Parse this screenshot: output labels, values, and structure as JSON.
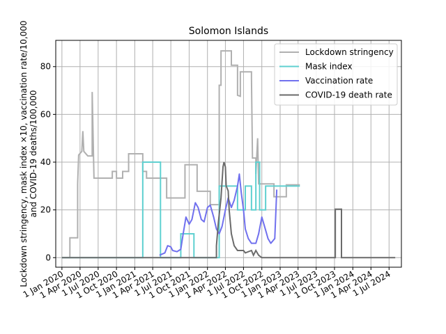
{
  "chart_data": {
    "type": "line",
    "title": "Solomon Islands",
    "xlabel": "",
    "ylabel_lines": [
      "Lockdown stringency, mask index ×10, vaccination rate/10,000",
      "and COVID-19 deaths/100,000"
    ],
    "xlim": [
      "2019-12-01",
      "2024-09-01"
    ],
    "ylim": [
      -4,
      91
    ],
    "x_ticks": [
      "2020-01-01",
      "2020-04-01",
      "2020-07-01",
      "2020-10-01",
      "2021-01-01",
      "2021-04-01",
      "2021-07-01",
      "2021-10-01",
      "2022-01-01",
      "2022-04-01",
      "2022-07-01",
      "2022-10-01",
      "2023-01-01",
      "2023-04-01",
      "2023-07-01",
      "2023-10-01",
      "2024-01-01",
      "2024-04-01",
      "2024-07-01"
    ],
    "x_tick_labels": [
      "1 Jan 2020",
      "1 Apr 2020",
      "1 Jul 2020",
      "1 Oct 2020",
      "1 Jan 2021",
      "1 Apr 2021",
      "1 Jul 2021",
      "1 Oct 2021",
      "1 Jan 2022",
      "1 Apr 2022",
      "1 Jul 2022",
      "1 Oct 2022",
      "1 Jan 2023",
      "1 Apr 2023",
      "1 Jul 2023",
      "1 Oct 2023",
      "1 Jan 2024",
      "1 Apr 2024",
      "1 Jul 2024"
    ],
    "y_ticks": [
      0,
      20,
      40,
      60,
      80
    ],
    "y_tick_labels": [
      "0",
      "20",
      "40",
      "60",
      "80"
    ],
    "grid": true,
    "legend_position": "top-right",
    "series": [
      {
        "name": "Lockdown stringency",
        "color": "#b0b0b0",
        "step": true,
        "points": [
          [
            "2020-01-01",
            0
          ],
          [
            "2020-02-10",
            0
          ],
          [
            "2020-02-10",
            8.3
          ],
          [
            "2020-03-20",
            8.3
          ],
          [
            "2020-03-20",
            31
          ],
          [
            "2020-03-25",
            43
          ],
          [
            "2020-04-10",
            44.5
          ],
          [
            "2020-04-15",
            53
          ],
          [
            "2020-04-20",
            44.5
          ],
          [
            "2020-05-10",
            42.6
          ],
          [
            "2020-06-01",
            42.6
          ],
          [
            "2020-06-01",
            69.4
          ],
          [
            "2020-06-10",
            33.3
          ],
          [
            "2020-09-10",
            33.3
          ],
          [
            "2020-09-10",
            36.1
          ],
          [
            "2020-10-01",
            36.1
          ],
          [
            "2020-10-01",
            33.3
          ],
          [
            "2020-11-01",
            33.3
          ],
          [
            "2020-11-01",
            36.1
          ],
          [
            "2020-12-01",
            36.1
          ],
          [
            "2020-12-01",
            43.5
          ],
          [
            "2021-02-10",
            43.5
          ],
          [
            "2021-02-10",
            36.1
          ],
          [
            "2021-03-01",
            36.1
          ],
          [
            "2021-03-01",
            33.3
          ],
          [
            "2021-06-10",
            33.3
          ],
          [
            "2021-06-10",
            25
          ],
          [
            "2021-09-10",
            25
          ],
          [
            "2021-09-10",
            38.9
          ],
          [
            "2021-11-10",
            38.9
          ],
          [
            "2021-11-10",
            27.8
          ],
          [
            "2022-01-15",
            27.8
          ],
          [
            "2022-01-15",
            22.2
          ],
          [
            "2022-03-01",
            22.2
          ],
          [
            "2022-03-01",
            72.2
          ],
          [
            "2022-03-10",
            72.2
          ],
          [
            "2022-03-10",
            86.6
          ],
          [
            "2022-05-01",
            86.6
          ],
          [
            "2022-05-01",
            80.6
          ],
          [
            "2022-06-01",
            80.6
          ],
          [
            "2022-06-01",
            68
          ],
          [
            "2022-06-15",
            67.6
          ],
          [
            "2022-06-15",
            77.8
          ],
          [
            "2022-08-10",
            77.8
          ],
          [
            "2022-08-10",
            75
          ],
          [
            "2022-08-15",
            41.7
          ],
          [
            "2022-09-01",
            41.7
          ],
          [
            "2022-09-01",
            35
          ],
          [
            "2022-09-10",
            50
          ],
          [
            "2022-09-15",
            30.9
          ],
          [
            "2022-12-01",
            30.9
          ],
          [
            "2022-12-01",
            25.5
          ],
          [
            "2023-02-01",
            25.5
          ],
          [
            "2023-02-01",
            30.5
          ],
          [
            "2023-04-10",
            30.5
          ]
        ]
      },
      {
        "name": "Mask index",
        "color": "#5fd0d0",
        "step": true,
        "points": [
          [
            "2020-01-01",
            0
          ],
          [
            "2021-02-10",
            0
          ],
          [
            "2021-02-10",
            40
          ],
          [
            "2021-05-10",
            40
          ],
          [
            "2021-05-10",
            0
          ],
          [
            "2021-08-20",
            0
          ],
          [
            "2021-08-20",
            10
          ],
          [
            "2021-10-25",
            10
          ],
          [
            "2021-10-25",
            0
          ],
          [
            "2022-03-01",
            0
          ],
          [
            "2022-03-01",
            30
          ],
          [
            "2022-06-01",
            30
          ],
          [
            "2022-06-01",
            20
          ],
          [
            "2022-07-10",
            20
          ],
          [
            "2022-07-10",
            30
          ],
          [
            "2022-08-10",
            30
          ],
          [
            "2022-08-10",
            20
          ],
          [
            "2022-09-01",
            20
          ],
          [
            "2022-09-01",
            40
          ],
          [
            "2022-09-20",
            40
          ],
          [
            "2022-09-20",
            20
          ],
          [
            "2022-10-20",
            20
          ],
          [
            "2022-10-20",
            30
          ],
          [
            "2023-02-01",
            30
          ],
          [
            "2023-02-01",
            30
          ],
          [
            "2023-04-10",
            30
          ]
        ]
      },
      {
        "name": "Vaccination rate",
        "color": "#7070ee",
        "step": false,
        "points": [
          [
            "2021-05-05",
            1
          ],
          [
            "2021-06-01",
            2
          ],
          [
            "2021-06-15",
            5
          ],
          [
            "2021-07-01",
            4.5
          ],
          [
            "2021-07-10",
            3
          ],
          [
            "2021-08-01",
            2.5
          ],
          [
            "2021-08-20",
            3.5
          ],
          [
            "2021-09-01",
            10
          ],
          [
            "2021-09-15",
            17
          ],
          [
            "2021-10-01",
            14
          ],
          [
            "2021-10-15",
            16
          ],
          [
            "2021-11-01",
            23
          ],
          [
            "2021-11-15",
            21
          ],
          [
            "2021-12-01",
            16
          ],
          [
            "2021-12-15",
            15
          ],
          [
            "2022-01-01",
            21
          ],
          [
            "2022-01-15",
            22
          ],
          [
            "2022-02-01",
            17
          ],
          [
            "2022-02-15",
            12
          ],
          [
            "2022-03-01",
            10
          ],
          [
            "2022-03-15",
            13
          ],
          [
            "2022-04-01",
            20
          ],
          [
            "2022-04-15",
            25
          ],
          [
            "2022-05-01",
            21
          ],
          [
            "2022-05-15",
            24
          ],
          [
            "2022-06-01",
            30
          ],
          [
            "2022-06-10",
            35
          ],
          [
            "2022-06-20",
            27
          ],
          [
            "2022-07-01",
            20
          ],
          [
            "2022-07-10",
            12
          ],
          [
            "2022-07-25",
            8
          ],
          [
            "2022-08-10",
            6
          ],
          [
            "2022-09-01",
            6
          ],
          [
            "2022-09-15",
            10
          ],
          [
            "2022-10-01",
            17
          ],
          [
            "2022-10-15",
            13
          ],
          [
            "2022-11-01",
            8
          ],
          [
            "2022-11-15",
            6
          ],
          [
            "2022-11-25",
            7
          ],
          [
            "2022-12-05",
            8
          ],
          [
            "2022-12-15",
            28.5
          ]
        ]
      },
      {
        "name": "COVID-19 death rate",
        "color": "#6a6a6a",
        "step": true,
        "points": [
          [
            "2020-01-01",
            0
          ],
          [
            "2022-02-15",
            0
          ],
          [
            "2022-02-15",
            5
          ],
          [
            "2022-02-25",
            15
          ],
          [
            "2022-03-10",
            25
          ],
          [
            "2022-03-20",
            38
          ],
          [
            "2022-03-25",
            40
          ],
          [
            "2022-04-01",
            38
          ],
          [
            "2022-04-05",
            30
          ],
          [
            "2022-04-15",
            28
          ],
          [
            "2022-04-20",
            20
          ],
          [
            "2022-05-01",
            10
          ],
          [
            "2022-05-15",
            5
          ],
          [
            "2022-06-01",
            3
          ],
          [
            "2022-07-01",
            3
          ],
          [
            "2022-07-10",
            2
          ],
          [
            "2022-08-10",
            3
          ],
          [
            "2022-08-20",
            1
          ],
          [
            "2022-09-01",
            3
          ],
          [
            "2022-09-15",
            1
          ],
          [
            "2022-10-01",
            0
          ],
          [
            "2023-10-05",
            0
          ],
          [
            "2023-10-05",
            20.3
          ],
          [
            "2023-11-05",
            20.3
          ],
          [
            "2023-11-05",
            0
          ],
          [
            "2024-08-01",
            0
          ]
        ]
      }
    ]
  }
}
